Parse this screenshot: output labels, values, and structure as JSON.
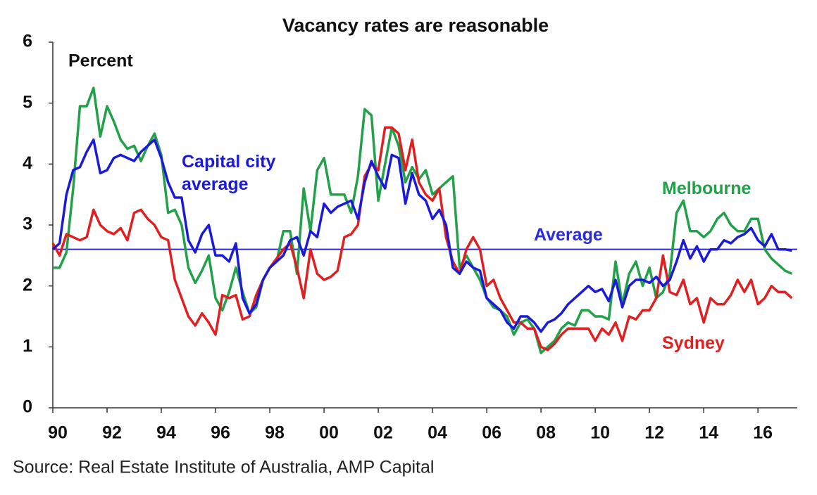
{
  "chart_data": {
    "type": "line",
    "title": "Vacancy rates are reasonable",
    "y_label": "Percent",
    "source": "Source: Real Estate Institute of Australia, AMP Capital",
    "x": [
      1990,
      1990.25,
      1990.5,
      1990.75,
      1991,
      1991.25,
      1991.5,
      1991.75,
      1992,
      1992.25,
      1992.5,
      1992.75,
      1993,
      1993.25,
      1993.5,
      1993.75,
      1994,
      1994.25,
      1994.5,
      1994.75,
      1995,
      1995.25,
      1995.5,
      1995.75,
      1996,
      1996.25,
      1996.5,
      1996.75,
      1997,
      1997.25,
      1997.5,
      1997.75,
      1998,
      1998.25,
      1998.5,
      1998.75,
      1999,
      1999.25,
      1999.5,
      1999.75,
      2000,
      2000.25,
      2000.5,
      2000.75,
      2001,
      2001.25,
      2001.5,
      2001.75,
      2002,
      2002.25,
      2002.5,
      2002.75,
      2003,
      2003.25,
      2003.5,
      2003.75,
      2004,
      2004.25,
      2004.5,
      2004.75,
      2005,
      2005.25,
      2005.5,
      2005.75,
      2006,
      2006.25,
      2006.5,
      2006.75,
      2007,
      2007.25,
      2007.5,
      2007.75,
      2008,
      2008.25,
      2008.5,
      2008.75,
      2009,
      2009.25,
      2009.5,
      2009.75,
      2010,
      2010.25,
      2010.5,
      2010.75,
      2011,
      2011.25,
      2011.5,
      2011.75,
      2012,
      2012.25,
      2012.5,
      2012.75,
      2013,
      2013.25,
      2013.5,
      2013.75,
      2014,
      2014.25,
      2014.5,
      2014.75,
      2015,
      2015.25,
      2015.5,
      2015.75,
      2016,
      2016.25,
      2016.5,
      2016.75,
      2017,
      2017.25
    ],
    "series": [
      {
        "name": "Melbourne",
        "color": "#22a04a",
        "values": [
          2.3,
          2.3,
          2.55,
          3.6,
          4.95,
          4.95,
          5.25,
          4.45,
          4.95,
          4.7,
          4.4,
          4.25,
          4.3,
          4.05,
          4.3,
          4.5,
          4.15,
          3.2,
          3.25,
          3.0,
          2.3,
          2.05,
          2.25,
          2.5,
          1.8,
          1.6,
          1.9,
          2.3,
          1.9,
          1.55,
          1.65,
          2.1,
          2.3,
          2.4,
          2.9,
          2.9,
          2.2,
          3.6,
          2.9,
          3.9,
          4.1,
          3.5,
          3.5,
          3.5,
          3.2,
          3.8,
          4.9,
          4.8,
          3.4,
          4.0,
          4.6,
          4.3,
          3.7,
          3.95,
          3.75,
          3.9,
          3.5,
          3.6,
          3.7,
          3.8,
          2.3,
          2.5,
          2.3,
          2.1,
          1.8,
          1.65,
          1.6,
          1.5,
          1.2,
          1.4,
          1.45,
          1.3,
          0.9,
          1.0,
          1.1,
          1.3,
          1.4,
          1.35,
          1.6,
          1.6,
          1.5,
          1.5,
          1.45,
          2.4,
          1.7,
          2.2,
          2.4,
          2.0,
          2.3,
          1.8,
          1.9,
          2.2,
          3.2,
          3.4,
          2.9,
          2.9,
          2.8,
          2.9,
          3.1,
          3.2,
          3.0,
          2.9,
          2.9,
          3.1,
          3.1,
          2.6,
          2.45,
          2.35,
          2.25,
          2.2
        ]
      },
      {
        "name": "Sydney",
        "color": "#e02020",
        "values": [
          2.7,
          2.5,
          2.85,
          2.8,
          2.75,
          2.8,
          3.25,
          3.0,
          2.9,
          2.85,
          2.95,
          2.75,
          3.2,
          3.25,
          3.1,
          3.0,
          2.8,
          2.75,
          2.1,
          1.8,
          1.5,
          1.35,
          1.55,
          1.4,
          1.2,
          1.85,
          1.8,
          1.85,
          1.45,
          1.5,
          1.85,
          2.1,
          2.3,
          2.45,
          2.6,
          2.7,
          2.3,
          1.8,
          2.6,
          2.2,
          2.1,
          2.15,
          2.25,
          2.8,
          2.85,
          3.0,
          3.8,
          4.0,
          3.9,
          4.6,
          4.6,
          4.5,
          3.9,
          4.4,
          3.7,
          3.5,
          3.4,
          3.6,
          2.8,
          2.4,
          2.2,
          2.6,
          2.8,
          2.6,
          2.0,
          2.1,
          1.8,
          1.6,
          1.4,
          1.4,
          1.3,
          1.3,
          1.0,
          0.95,
          1.05,
          1.2,
          1.3,
          1.3,
          1.3,
          1.3,
          1.1,
          1.3,
          1.2,
          1.4,
          1.1,
          1.5,
          1.45,
          1.6,
          1.6,
          1.8,
          2.5,
          1.9,
          1.85,
          2.1,
          1.7,
          1.8,
          1.4,
          1.8,
          1.7,
          1.7,
          1.85,
          2.1,
          1.9,
          2.1,
          1.7,
          1.8,
          2.0,
          1.9,
          1.9,
          1.8
        ]
      },
      {
        "name": "Capital city average",
        "color": "#1a1ad8",
        "values": [
          2.6,
          2.7,
          3.5,
          3.9,
          3.95,
          4.2,
          4.4,
          3.85,
          3.9,
          4.1,
          4.15,
          4.1,
          4.05,
          4.2,
          4.3,
          4.4,
          4.1,
          3.7,
          3.45,
          3.45,
          2.75,
          2.55,
          2.85,
          3.0,
          2.5,
          2.5,
          2.4,
          2.7,
          1.8,
          1.55,
          1.7,
          2.1,
          2.3,
          2.4,
          2.5,
          2.75,
          2.8,
          2.5,
          2.9,
          2.8,
          3.35,
          3.2,
          3.3,
          3.35,
          3.4,
          3.1,
          3.7,
          4.05,
          3.8,
          3.6,
          4.15,
          4.1,
          3.35,
          3.85,
          3.5,
          3.4,
          3.1,
          3.25,
          3.0,
          2.3,
          2.2,
          2.4,
          2.3,
          2.25,
          1.8,
          1.7,
          1.6,
          1.4,
          1.3,
          1.5,
          1.5,
          1.4,
          1.25,
          1.4,
          1.45,
          1.55,
          1.7,
          1.8,
          1.9,
          2.0,
          1.9,
          1.95,
          1.75,
          2.1,
          1.65,
          2.0,
          2.1,
          2.1,
          2.05,
          2.15,
          2.0,
          2.1,
          2.4,
          2.75,
          2.45,
          2.65,
          2.4,
          2.6,
          2.6,
          2.75,
          2.7,
          2.8,
          2.85,
          2.95,
          2.75,
          2.65,
          2.85,
          2.6,
          2.6,
          2.58
        ]
      }
    ],
    "average_line": {
      "label": "Average",
      "value": 2.6,
      "color": "#2a2ae0"
    },
    "xlim": [
      1990,
      2017.45
    ],
    "xticks": [
      {
        "value": 1990,
        "label": "90"
      },
      {
        "value": 1992,
        "label": "92"
      },
      {
        "value": 1994,
        "label": "94"
      },
      {
        "value": 1996,
        "label": "96"
      },
      {
        "value": 1998,
        "label": "98"
      },
      {
        "value": 2000,
        "label": "00"
      },
      {
        "value": 2002,
        "label": "02"
      },
      {
        "value": 2004,
        "label": "04"
      },
      {
        "value": 2006,
        "label": "06"
      },
      {
        "value": 2008,
        "label": "08"
      },
      {
        "value": 2010,
        "label": "10"
      },
      {
        "value": 2012,
        "label": "12"
      },
      {
        "value": 2014,
        "label": "14"
      },
      {
        "value": 2016,
        "label": "16"
      }
    ],
    "ylim": [
      0,
      6
    ],
    "yticks": [
      0,
      1,
      2,
      3,
      4,
      5,
      6
    ],
    "grid": false
  }
}
